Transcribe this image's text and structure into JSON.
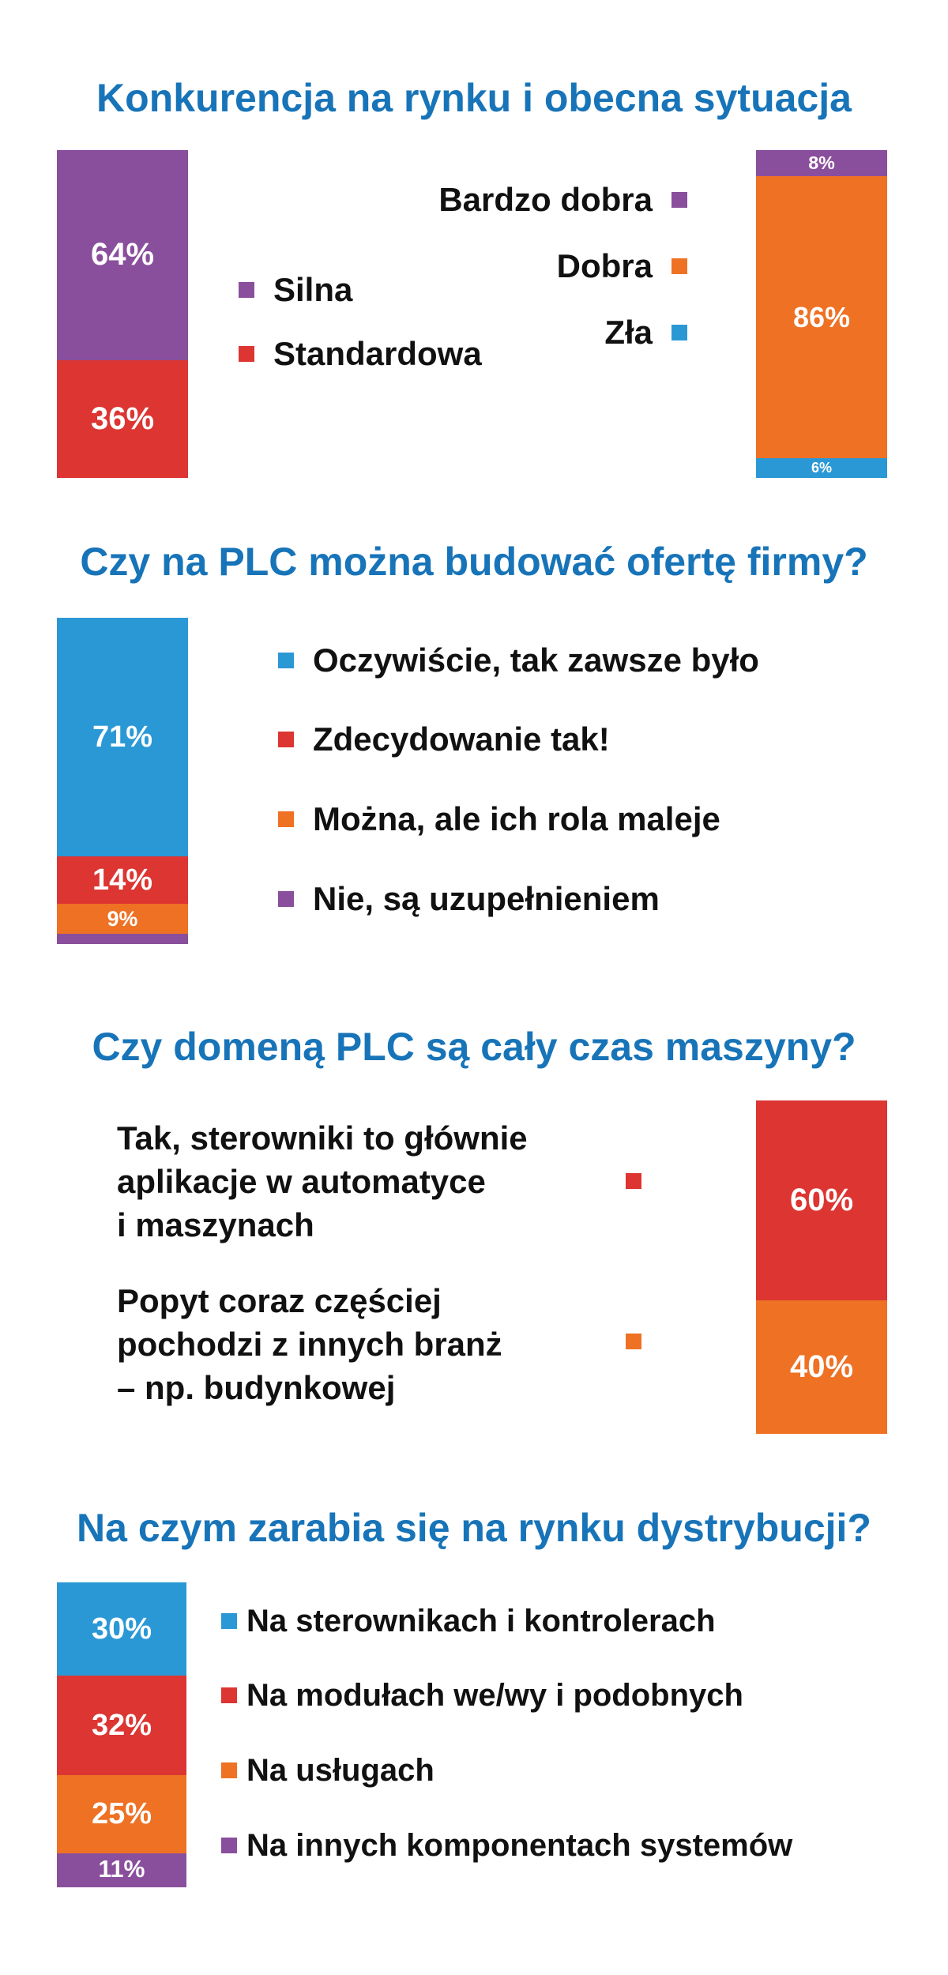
{
  "colors": {
    "purple": "#8a4f9c",
    "red": "#dc3532",
    "orange": "#ee7124",
    "blue": "#2b98d6",
    "title": "#1874b8"
  },
  "chart_data": [
    {
      "type": "stacked-bar",
      "title": "Konkurencja na rynku i obecna sytuacja",
      "series": [
        {
          "name": "Silna",
          "value": 64,
          "label": "64%",
          "color": "#8a4f9c"
        },
        {
          "name": "Standardowa",
          "value": 36,
          "label": "36%",
          "color": "#dc3532"
        }
      ]
    },
    {
      "type": "stacked-bar",
      "title": "",
      "series": [
        {
          "name": "Bardzo dobra",
          "value": 8,
          "label": "8%",
          "color": "#8a4f9c"
        },
        {
          "name": "Dobra",
          "value": 86,
          "label": "86%",
          "color": "#ee7124"
        },
        {
          "name": "Zła",
          "value": 6,
          "label": "6%",
          "color": "#2b98d6"
        }
      ]
    },
    {
      "type": "stacked-bar",
      "title": "Czy na PLC można budować ofertę firmy?",
      "series": [
        {
          "name": "Oczywiście, tak zawsze było",
          "value": 71,
          "label": "71%",
          "color": "#2b98d6"
        },
        {
          "name": "Zdecydowanie tak!",
          "value": 14,
          "label": "14%",
          "color": "#dc3532"
        },
        {
          "name": "Można, ale ich rola maleje",
          "value": 9,
          "label": "9%",
          "color": "#ee7124"
        },
        {
          "name": "Nie, są uzupełnieniem",
          "value": 3,
          "label": "",
          "color": "#8a4f9c"
        }
      ]
    },
    {
      "type": "stacked-bar",
      "title": "Czy domeną PLC są cały czas maszyny?",
      "series": [
        {
          "name": "Tak, sterowniki to głównie\naplikacje w automatyce\ni maszynach",
          "value": 60,
          "label": "60%",
          "color": "#dc3532"
        },
        {
          "name": "Popyt coraz częściej\npochodzi z innych branż\n– np. budynkowej",
          "value": 40,
          "label": "40%",
          "color": "#ee7124"
        }
      ]
    },
    {
      "type": "stacked-bar",
      "title": "Na czym zarabia się na rynku dystrybucji?",
      "series": [
        {
          "name": "Na sterownikach i kontrolerach",
          "value": 30,
          "label": "30%",
          "color": "#2b98d6"
        },
        {
          "name": "Na modułach we/wy i podobnych",
          "value": 32,
          "label": "32%",
          "color": "#dc3532"
        },
        {
          "name": "Na usługach",
          "value": 25,
          "label": "25%",
          "color": "#ee7124"
        },
        {
          "name": "Na innych komponentach systemów",
          "value": 11,
          "label": "11%",
          "color": "#8a4f9c"
        }
      ]
    }
  ]
}
